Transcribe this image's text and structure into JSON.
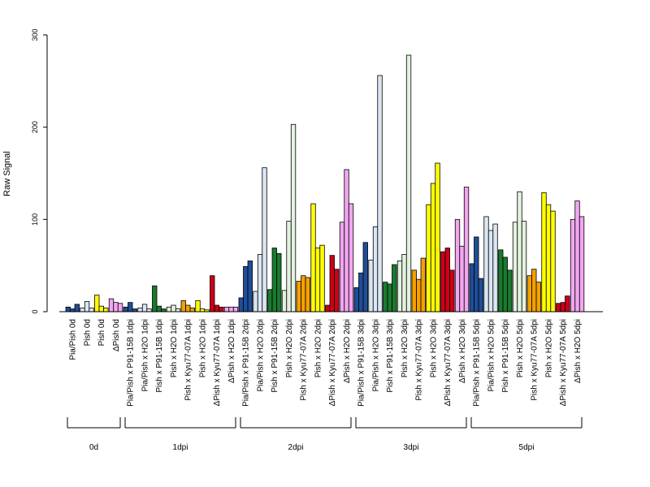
{
  "chart_data": {
    "type": "bar",
    "title": "",
    "xlabel": "",
    "ylabel": "Raw Signal",
    "ylim": [
      0,
      300
    ],
    "yticks": [
      0,
      100,
      200,
      300
    ],
    "grid": false,
    "legend": "none",
    "colors": {
      "Pia/Pish": "#1f4e99",
      "Pia/Pish x H2O": "#dbe6f3",
      "Pish x P91-15B": "#1a7a2e",
      "Pish x H2O": "#e3f2df",
      "Pish x Kyu77-07A": "#f5a000",
      "Pish": "#ffff00",
      "ΔPish x Kyu77-07A": "#cc0018",
      "ΔPish x H2O": "#f2a6f0",
      "ΔPish": "#f2a6f0"
    },
    "categories": [
      "Pia/Pish 0d",
      "Pish 0d",
      "Pish 0d",
      "ΔPish 0d",
      "Pia/Pish x P91-15B 1dpi",
      "Pia/Pish x H2O 1dpi",
      "Pish x P91-15B 1dpi",
      "Pish x H2O 1dpi",
      "Pish x Kyu77-07A 1dpi",
      "Pish x H2O 1dpi",
      "ΔPish x Kyu77-07A 1dpi",
      "ΔPish x H2O 1dpi",
      "Pia/Pish x P91-15B 2dpi",
      "Pia/Pish x H2O 2dpi",
      "Pish x P91-15B 2dpi",
      "Pish x H2O 2dpi",
      "Pish x Kyu77-07A 2dpi",
      "Pish x H2O 2dpi",
      "ΔPish x Kyu77-07A 2dpi",
      "ΔPish x H2O 2dpi",
      "Pia/Pish x P91-15B 3dpi",
      "Pia/Pish x H2O 3dpi",
      "Pish x P91-15B 3dpi",
      "Pish x H2O 3dpi",
      "Pish x Kyu77-07A 3dpi",
      "Pish x H2O 3dpi",
      "ΔPish x Kyu77-07A 3dpi",
      "ΔPish x H2O 3dpi",
      "Pia/Pish x P91-15B 5dpi",
      "Pia/Pish x H2O 5dpi",
      "Pish x P91-15B 5dpi",
      "Pish x H2O 5dpi",
      "Pish x Kyu77-07A 5dpi",
      "Pish x H2O 5dpi",
      "ΔPish x Kyu77-07A 5dpi",
      "ΔPish x H2O 5dpi"
    ],
    "groups": [
      {
        "label": "0d",
        "count": 4
      },
      {
        "label": "1dpi",
        "count": 8
      },
      {
        "label": "2dpi",
        "count": 8
      },
      {
        "label": "3dpi",
        "count": 8
      },
      {
        "label": "5dpi",
        "count": 8
      }
    ],
    "bars": [
      {
        "series": "Pia/Pish",
        "values": [
          5,
          3,
          8
        ]
      },
      {
        "series": "Pia/Pish x H2O",
        "values": [
          4,
          11,
          4
        ]
      },
      {
        "series": "Pish",
        "values": [
          18,
          6,
          4
        ]
      },
      {
        "series": "ΔPish",
        "values": [
          14,
          10,
          9
        ]
      },
      {
        "series": "Pia/Pish",
        "values": [
          5,
          10,
          3
        ]
      },
      {
        "series": "Pia/Pish x H2O",
        "values": [
          4,
          8,
          3
        ]
      },
      {
        "series": "Pish x P91-15B",
        "values": [
          28,
          6,
          3
        ]
      },
      {
        "series": "Pish x H2O",
        "values": [
          5,
          7,
          3
        ]
      },
      {
        "series": "Pish x Kyu77-07A",
        "values": [
          12,
          7,
          4
        ]
      },
      {
        "series": "Pish",
        "values": [
          12,
          3,
          2
        ]
      },
      {
        "series": "ΔPish x Kyu77-07A",
        "values": [
          39,
          7,
          5
        ]
      },
      {
        "series": "ΔPish x H2O",
        "values": [
          5,
          5,
          5
        ]
      },
      {
        "series": "Pia/Pish",
        "values": [
          15,
          49,
          55
        ]
      },
      {
        "series": "Pia/Pish x H2O",
        "values": [
          22,
          62,
          156
        ]
      },
      {
        "series": "Pish x P91-15B",
        "values": [
          24,
          69,
          63
        ]
      },
      {
        "series": "Pish x H2O",
        "values": [
          23,
          98,
          203
        ]
      },
      {
        "series": "Pish x Kyu77-07A",
        "values": [
          33,
          39,
          37
        ]
      },
      {
        "series": "Pish",
        "values": [
          117,
          69,
          72
        ]
      },
      {
        "series": "ΔPish x Kyu77-07A",
        "values": [
          7,
          61,
          46
        ]
      },
      {
        "series": "ΔPish x H2O",
        "values": [
          97,
          154,
          117
        ]
      },
      {
        "series": "Pia/Pish",
        "values": [
          26,
          42,
          75
        ]
      },
      {
        "series": "Pia/Pish x H2O",
        "values": [
          56,
          92,
          256
        ]
      },
      {
        "series": "Pish x P91-15B",
        "values": [
          32,
          30,
          51
        ]
      },
      {
        "series": "Pish x H2O",
        "values": [
          55,
          62,
          278
        ]
      },
      {
        "series": "Pish x Kyu77-07A",
        "values": [
          45,
          35,
          58
        ]
      },
      {
        "series": "Pish",
        "values": [
          116,
          139,
          161
        ]
      },
      {
        "series": "ΔPish x Kyu77-07A",
        "values": [
          65,
          69,
          45
        ]
      },
      {
        "series": "ΔPish x H2O",
        "values": [
          100,
          71,
          135
        ]
      },
      {
        "series": "Pia/Pish",
        "values": [
          52,
          81,
          36
        ]
      },
      {
        "series": "Pia/Pish x H2O",
        "values": [
          103,
          88,
          95
        ]
      },
      {
        "series": "Pish x P91-15B",
        "values": [
          67,
          59,
          45
        ]
      },
      {
        "series": "Pish x H2O",
        "values": [
          97,
          130,
          98
        ]
      },
      {
        "series": "Pish x Kyu77-07A",
        "values": [
          39,
          46,
          32
        ]
      },
      {
        "series": "Pish",
        "values": [
          129,
          116,
          109
        ]
      },
      {
        "series": "ΔPish x Kyu77-07A",
        "values": [
          9,
          10,
          17
        ]
      },
      {
        "series": "ΔPish x H2O",
        "values": [
          100,
          120,
          103
        ]
      }
    ]
  }
}
